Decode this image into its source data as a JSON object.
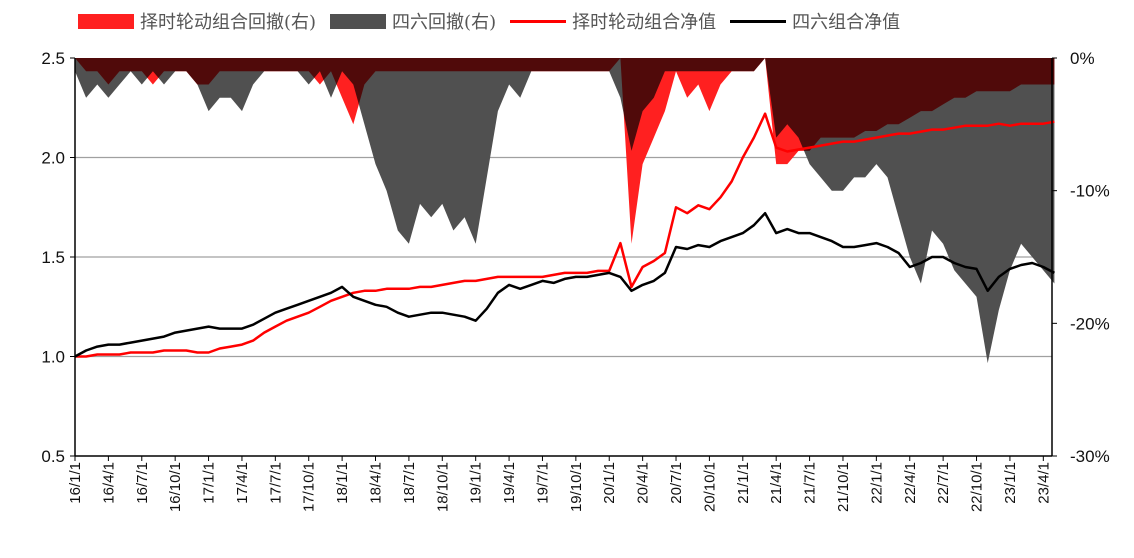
{
  "chart_data": {
    "type": "line+area",
    "start_month": "2016-01",
    "frequency": "monthly",
    "legend": [
      {
        "label": "择时轮动组合回撤(右)",
        "kind": "area",
        "color": "#ff2020"
      },
      {
        "label": "四六回撤(右)",
        "kind": "area",
        "color": "#505050"
      },
      {
        "label": "择时轮动组合净值",
        "kind": "line",
        "color": "#ff0000"
      },
      {
        "label": "四六组合净值",
        "kind": "line",
        "color": "#000000"
      }
    ],
    "legend_position": "top",
    "y_left": {
      "range": [
        0.5,
        2.5
      ],
      "ticks": [
        "0.5",
        "1.0",
        "1.5",
        "2.0",
        "2.5"
      ],
      "tick_values": [
        0.5,
        1.0,
        1.5,
        2.0,
        2.5
      ]
    },
    "y_right": {
      "range": [
        -30,
        0
      ],
      "ticks": [
        "-30%",
        "-20%",
        "-10%",
        "0%"
      ],
      "tick_values": [
        -30,
        -20,
        -10,
        0
      ]
    },
    "x_ticks": [
      "16/1/1",
      "16/4/1",
      "16/7/1",
      "16/10/1",
      "17/1/1",
      "17/4/1",
      "17/7/1",
      "17/10/1",
      "18/1/1",
      "18/4/1",
      "18/7/1",
      "18/10/1",
      "19/1/1",
      "19/4/1",
      "19/7/1",
      "19/10/1",
      "20/1/1",
      "20/4/1",
      "20/7/1",
      "20/10/1",
      "21/1/1",
      "21/4/1",
      "21/7/1",
      "21/10/1",
      "22/1/1",
      "22/4/1",
      "22/7/1",
      "22/10/1",
      "23/1/1",
      "23/4/1"
    ],
    "grid": "horizontal",
    "series": [
      {
        "name": "择时轮动组合净值",
        "axis": "left",
        "values": [
          1.0,
          1.0,
          1.01,
          1.01,
          1.01,
          1.02,
          1.02,
          1.02,
          1.03,
          1.03,
          1.03,
          1.02,
          1.02,
          1.04,
          1.05,
          1.06,
          1.08,
          1.12,
          1.15,
          1.18,
          1.2,
          1.22,
          1.25,
          1.28,
          1.3,
          1.32,
          1.33,
          1.33,
          1.34,
          1.34,
          1.34,
          1.35,
          1.35,
          1.36,
          1.37,
          1.38,
          1.38,
          1.39,
          1.4,
          1.4,
          1.4,
          1.4,
          1.4,
          1.41,
          1.42,
          1.42,
          1.42,
          1.43,
          1.43,
          1.57,
          1.35,
          1.45,
          1.48,
          1.52,
          1.75,
          1.72,
          1.76,
          1.74,
          1.8,
          1.88,
          2.0,
          2.1,
          2.22,
          2.05,
          2.03,
          2.04,
          2.05,
          2.06,
          2.07,
          2.08,
          2.08,
          2.09,
          2.1,
          2.11,
          2.12,
          2.12,
          2.13,
          2.14,
          2.14,
          2.15,
          2.16,
          2.16,
          2.16,
          2.17,
          2.16,
          2.17,
          2.17,
          2.17,
          2.18
        ]
      },
      {
        "name": "四六组合净值",
        "axis": "left",
        "values": [
          1.0,
          1.03,
          1.05,
          1.06,
          1.06,
          1.07,
          1.08,
          1.09,
          1.1,
          1.12,
          1.13,
          1.14,
          1.15,
          1.14,
          1.14,
          1.14,
          1.16,
          1.19,
          1.22,
          1.24,
          1.26,
          1.28,
          1.3,
          1.32,
          1.35,
          1.3,
          1.28,
          1.26,
          1.25,
          1.22,
          1.2,
          1.21,
          1.22,
          1.22,
          1.21,
          1.2,
          1.18,
          1.24,
          1.32,
          1.36,
          1.34,
          1.36,
          1.38,
          1.37,
          1.39,
          1.4,
          1.4,
          1.41,
          1.42,
          1.4,
          1.33,
          1.36,
          1.38,
          1.42,
          1.55,
          1.54,
          1.56,
          1.55,
          1.58,
          1.6,
          1.62,
          1.66,
          1.72,
          1.62,
          1.64,
          1.62,
          1.62,
          1.6,
          1.58,
          1.55,
          1.55,
          1.56,
          1.57,
          1.55,
          1.52,
          1.45,
          1.47,
          1.5,
          1.5,
          1.47,
          1.45,
          1.44,
          1.33,
          1.4,
          1.44,
          1.46,
          1.47,
          1.45,
          1.42
        ]
      },
      {
        "name": "择时轮动组合回撤(右)",
        "axis": "right",
        "values": [
          0,
          -1,
          -1,
          -2,
          -1,
          -1,
          -1,
          -2,
          -1,
          -1,
          -1,
          -2,
          -2,
          -1,
          -1,
          -1,
          -1,
          -1,
          -1,
          -1,
          -1,
          -1,
          -2,
          -1,
          -3,
          -5,
          -2,
          -1,
          -1,
          -1,
          -1,
          -1,
          -1,
          -1,
          -1,
          -1,
          -1,
          -1,
          -1,
          -1,
          -1,
          -1,
          -1,
          -1,
          -1,
          -1,
          -1,
          -1,
          -1,
          0,
          -14,
          -8,
          -6,
          -4,
          -1,
          -3,
          -2,
          -4,
          -2,
          -1,
          -1,
          -1,
          0,
          -8,
          -8,
          -7,
          -7,
          -6,
          -6,
          -6,
          -6,
          -5.5,
          -5.5,
          -5,
          -5,
          -4.5,
          -4,
          -4,
          -3.5,
          -3,
          -3,
          -2.5,
          -2.5,
          -2.5,
          -2.5,
          -2,
          -2,
          -2,
          -2
        ]
      },
      {
        "name": "四六回撤(右)",
        "axis": "right",
        "values": [
          -1,
          -3,
          -2,
          -3,
          -2,
          -1,
          -2,
          -1,
          -2,
          -1,
          -1,
          -2,
          -4,
          -3,
          -3,
          -4,
          -2,
          -1,
          -1,
          -1,
          -1,
          -2,
          -1,
          -3,
          -1,
          -2,
          -5,
          -8,
          -10,
          -13,
          -14,
          -11,
          -12,
          -11,
          -13,
          -12,
          -14,
          -9,
          -4,
          -2,
          -3,
          -1,
          -1,
          -1,
          -1,
          -1,
          -1,
          -1,
          -1,
          -3,
          -7,
          -4,
          -3,
          -1,
          -1,
          -1,
          -1,
          -1,
          -1,
          -1,
          -1,
          -1,
          0,
          -6,
          -5,
          -6,
          -8,
          -9,
          -10,
          -10,
          -9,
          -9,
          -8,
          -9,
          -12,
          -15,
          -17,
          -13,
          -14,
          -16,
          -17,
          -18,
          -23,
          -19,
          -16,
          -14,
          -15,
          -16,
          -17
        ]
      }
    ]
  }
}
